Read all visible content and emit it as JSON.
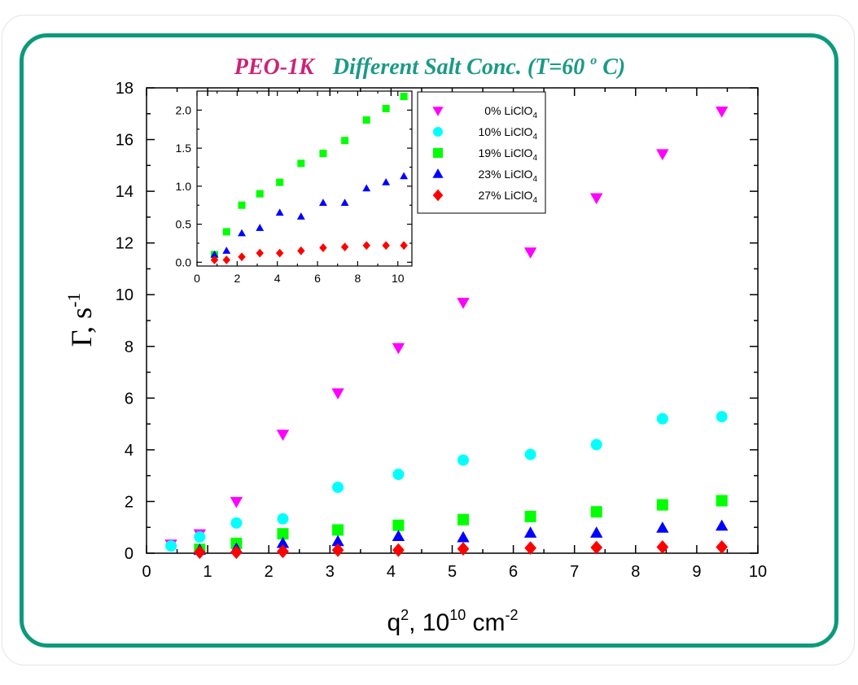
{
  "title": {
    "part1": "PEO-1K",
    "part2": "Different Salt Conc. (T=60",
    "degree": "o",
    "part3": "C)"
  },
  "colors": {
    "frame": "#0b9a7c",
    "title1": "#cc2277",
    "title2": "#1a9a86"
  },
  "chart_data": [
    {
      "type": "scatter",
      "xlabel": "q², 10¹⁰ cm⁻²",
      "ylabel": "Γ, s⁻¹",
      "xlim": [
        0,
        10
      ],
      "ylim": [
        0,
        18
      ],
      "xticks": [
        0,
        1,
        2,
        3,
        4,
        5,
        6,
        7,
        8,
        9,
        10
      ],
      "yticks": [
        0,
        2,
        4,
        6,
        8,
        10,
        12,
        14,
        16,
        18
      ],
      "legend_position": "top-right",
      "series": [
        {
          "name": "0% LiClO4",
          "marker": "triangle-down",
          "color": "#ff00ff",
          "x": [
            0.4,
            0.87,
            1.47,
            2.23,
            3.13,
            4.12,
            5.18,
            6.28,
            7.36,
            8.44,
            9.41
          ],
          "y": [
            0.35,
            0.75,
            2.0,
            4.6,
            6.2,
            7.95,
            9.7,
            11.65,
            13.75,
            15.45,
            17.1
          ]
        },
        {
          "name": "10% LiClO4",
          "marker": "circle",
          "color": "#00ffff",
          "x": [
            0.4,
            0.87,
            1.47,
            2.23,
            3.13,
            4.12,
            5.18,
            6.28,
            7.36,
            8.44,
            9.41
          ],
          "y": [
            0.28,
            0.63,
            1.17,
            1.33,
            2.55,
            3.05,
            3.6,
            3.82,
            4.2,
            5.2,
            5.28
          ]
        },
        {
          "name": "19% LiClO4",
          "marker": "square",
          "color": "#00ff00",
          "x": [
            0.87,
            1.47,
            2.23,
            3.13,
            4.12,
            5.18,
            6.28,
            7.36,
            8.44,
            9.41
          ],
          "y": [
            0.15,
            0.38,
            0.75,
            0.9,
            1.08,
            1.3,
            1.42,
            1.6,
            1.87,
            2.03
          ]
        },
        {
          "name": "23% LiClO4",
          "marker": "triangle-up",
          "color": "#0000ff",
          "x": [
            0.87,
            1.47,
            2.23,
            3.13,
            4.12,
            5.18,
            6.28,
            7.36,
            8.44,
            9.41
          ],
          "y": [
            0.12,
            0.17,
            0.38,
            0.45,
            0.65,
            0.6,
            0.78,
            0.78,
            0.97,
            1.05
          ]
        },
        {
          "name": "27% LiClO4",
          "marker": "diamond",
          "color": "#ff0000",
          "x": [
            0.87,
            1.47,
            2.23,
            3.13,
            4.12,
            5.18,
            6.28,
            7.36,
            8.44,
            9.41
          ],
          "y": [
            0.04,
            0.04,
            0.07,
            0.12,
            0.12,
            0.17,
            0.2,
            0.22,
            0.24,
            0.24
          ]
        }
      ]
    },
    {
      "type": "scatter",
      "inset": true,
      "xlim": [
        0,
        10.7
      ],
      "ylim": [
        -0.05,
        2.25
      ],
      "xticks": [
        0,
        2,
        4,
        6,
        8,
        10
      ],
      "yticks": [
        0.0,
        0.5,
        1.0,
        1.5,
        2.0
      ],
      "ytick_labels": [
        "0.0",
        "0.5",
        "1.0",
        "1.5",
        "2.0"
      ],
      "series": [
        {
          "name": "19% LiClO4",
          "marker": "square",
          "color": "#00ff00",
          "x": [
            0.87,
            1.47,
            2.23,
            3.13,
            4.12,
            5.18,
            6.28,
            7.36,
            8.44,
            9.41,
            10.3
          ],
          "y": [
            0.1,
            0.4,
            0.75,
            0.9,
            1.05,
            1.3,
            1.43,
            1.6,
            1.87,
            2.02,
            2.18
          ]
        },
        {
          "name": "23% LiClO4",
          "marker": "triangle-up",
          "color": "#0000ff",
          "x": [
            0.87,
            1.47,
            2.23,
            3.13,
            4.12,
            5.18,
            6.28,
            7.36,
            8.44,
            9.41,
            10.3
          ],
          "y": [
            0.1,
            0.15,
            0.38,
            0.45,
            0.65,
            0.6,
            0.78,
            0.78,
            0.97,
            1.05,
            1.13
          ]
        },
        {
          "name": "27% LiClO4",
          "marker": "diamond",
          "color": "#ff0000",
          "x": [
            0.87,
            1.47,
            2.23,
            3.13,
            4.12,
            5.18,
            6.28,
            7.36,
            8.44,
            9.41,
            10.3
          ],
          "y": [
            0.03,
            0.03,
            0.07,
            0.12,
            0.12,
            0.15,
            0.19,
            0.2,
            0.22,
            0.22,
            0.22
          ]
        }
      ]
    }
  ]
}
